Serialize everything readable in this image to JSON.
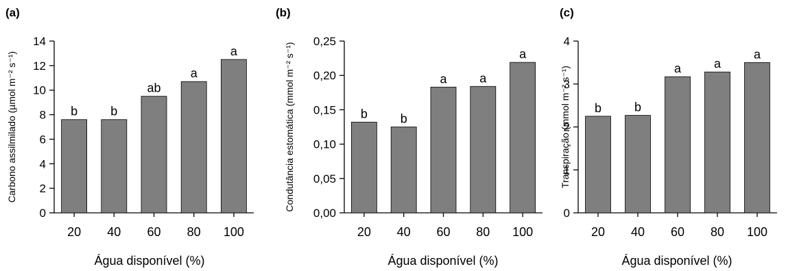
{
  "chart_data": [
    {
      "panel_label": "(a)",
      "type": "bar",
      "categories": [
        "20",
        "40",
        "60",
        "80",
        "100"
      ],
      "values": [
        7.6,
        7.6,
        9.5,
        10.7,
        12.5
      ],
      "letters": [
        "b",
        "b",
        "ab",
        "a",
        "a"
      ],
      "xlabel": "Água disponível (%)",
      "ylabel": "Carbono assilmilado (µmol m⁻² s⁻¹)",
      "ylim": [
        0,
        14
      ],
      "yticks": [
        0,
        2,
        4,
        6,
        8,
        10,
        12,
        14
      ],
      "ytick_labels": [
        "0",
        "2",
        "4",
        "6",
        "8",
        "10",
        "12",
        "14"
      ],
      "bar_color": "#7f7f7f",
      "grid": false
    },
    {
      "panel_label": "(b)",
      "type": "bar",
      "categories": [
        "20",
        "40",
        "60",
        "80",
        "100"
      ],
      "values": [
        0.132,
        0.125,
        0.183,
        0.184,
        0.219
      ],
      "letters": [
        "b",
        "b",
        "a",
        "a",
        "a"
      ],
      "xlabel": "Água disponível (%)",
      "ylabel": "Condutância estomática (mmol m⁻² s⁻¹)",
      "ylim": [
        0,
        0.25
      ],
      "yticks": [
        0,
        0.05,
        0.1,
        0.15,
        0.2,
        0.25
      ],
      "ytick_labels": [
        "0,00",
        "0,05",
        "0,10",
        "0,15",
        "0,20",
        "0,25"
      ],
      "bar_color": "#7f7f7f",
      "grid": false
    },
    {
      "panel_label": "(c)",
      "type": "bar",
      "categories": [
        "20",
        "40",
        "60",
        "80",
        "100"
      ],
      "values": [
        2.25,
        2.27,
        3.17,
        3.28,
        3.5
      ],
      "letters": [
        "b",
        "b",
        "a",
        "a",
        "a"
      ],
      "xlabel": "Água disponível (%)",
      "ylabel": "Transpiração (mmol m⁻² s⁻¹)",
      "ylim": [
        0,
        4
      ],
      "yticks": [
        0,
        1,
        2,
        3,
        4
      ],
      "ytick_labels": [
        "0",
        "1",
        "2",
        "3",
        "4"
      ],
      "bar_color": "#7f7f7f",
      "grid": false
    }
  ]
}
